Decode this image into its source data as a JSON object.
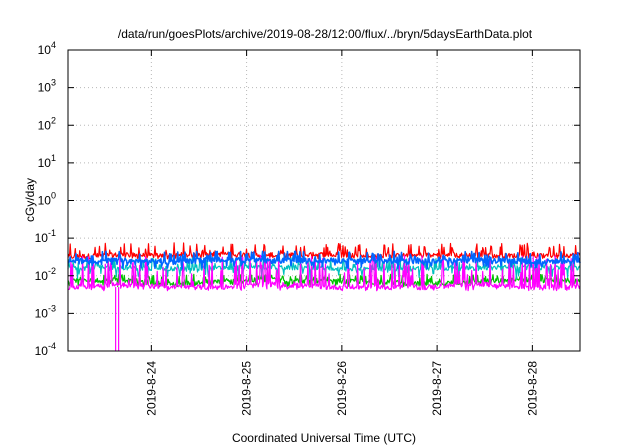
{
  "chart_data": {
    "type": "line",
    "title": "/data/run/goesPlots/archive/2019-08-28/12:00/flux/../bryn/5daysEarthData.plot",
    "xlabel": "Coordinated Universal Time (UTC)",
    "ylabel": "cGy/day",
    "yscale": "log",
    "ylim": [
      0.0001,
      10000
    ],
    "xlim": [
      "2019-08-23 03:00",
      "2019-08-28 12:00"
    ],
    "grid": true,
    "legend": "none",
    "x_ticks": [
      "2019-8-24",
      "2019-8-25",
      "2019-8-26",
      "2019-8-27",
      "2019-8-28"
    ],
    "y_ticks": [
      {
        "value": 0.0001,
        "base": "10",
        "exp": "-4"
      },
      {
        "value": 0.001,
        "base": "10",
        "exp": "-3"
      },
      {
        "value": 0.01,
        "base": "10",
        "exp": "-2"
      },
      {
        "value": 0.1,
        "base": "10",
        "exp": "-1"
      },
      {
        "value": 1,
        "base": "10",
        "exp": "0"
      },
      {
        "value": 10,
        "base": "10",
        "exp": "1"
      },
      {
        "value": 100,
        "base": "10",
        "exp": "2"
      },
      {
        "value": 1000,
        "base": "10",
        "exp": "3"
      },
      {
        "value": 10000,
        "base": "10",
        "exp": "4"
      }
    ],
    "series": [
      {
        "color": "#ff0000",
        "base": 0.035,
        "low": 0.028,
        "high": 0.075,
        "values": [
          0.032,
          0.036,
          0.034,
          0.038,
          0.035,
          0.037,
          0.033,
          0.036,
          0.035,
          0.034,
          0.036
        ]
      },
      {
        "color": "#00c000",
        "base": 0.007,
        "low": 0.005,
        "high": 0.011,
        "values": [
          0.007,
          0.008,
          0.006,
          0.007,
          0.008,
          0.007,
          0.007,
          0.006,
          0.007,
          0.008,
          0.007
        ]
      },
      {
        "color": "#00c0c0",
        "base": 0.016,
        "low": 0.008,
        "high": 0.03,
        "values": [
          0.016,
          0.017,
          0.015,
          0.016,
          0.017,
          0.016,
          0.015,
          0.016,
          0.016,
          0.017,
          0.016
        ]
      },
      {
        "color": "#ff00ff",
        "base": 0.005,
        "low": 0.004,
        "high": 0.035,
        "values": [
          0.005,
          0.006,
          0.005,
          0.005,
          0.006,
          0.005,
          0.005,
          0.005,
          0.006,
          0.005,
          0.005
        ]
      },
      {
        "color": "#0066ff",
        "base": 0.025,
        "low": 0.015,
        "high": 0.045,
        "values": [
          0.024,
          0.026,
          0.023,
          0.027,
          0.025,
          0.026,
          0.024,
          0.025,
          0.026,
          0.024,
          0.025
        ]
      }
    ],
    "dropout": {
      "x": "2019-08-23 15:00",
      "value": 0.0001
    }
  }
}
